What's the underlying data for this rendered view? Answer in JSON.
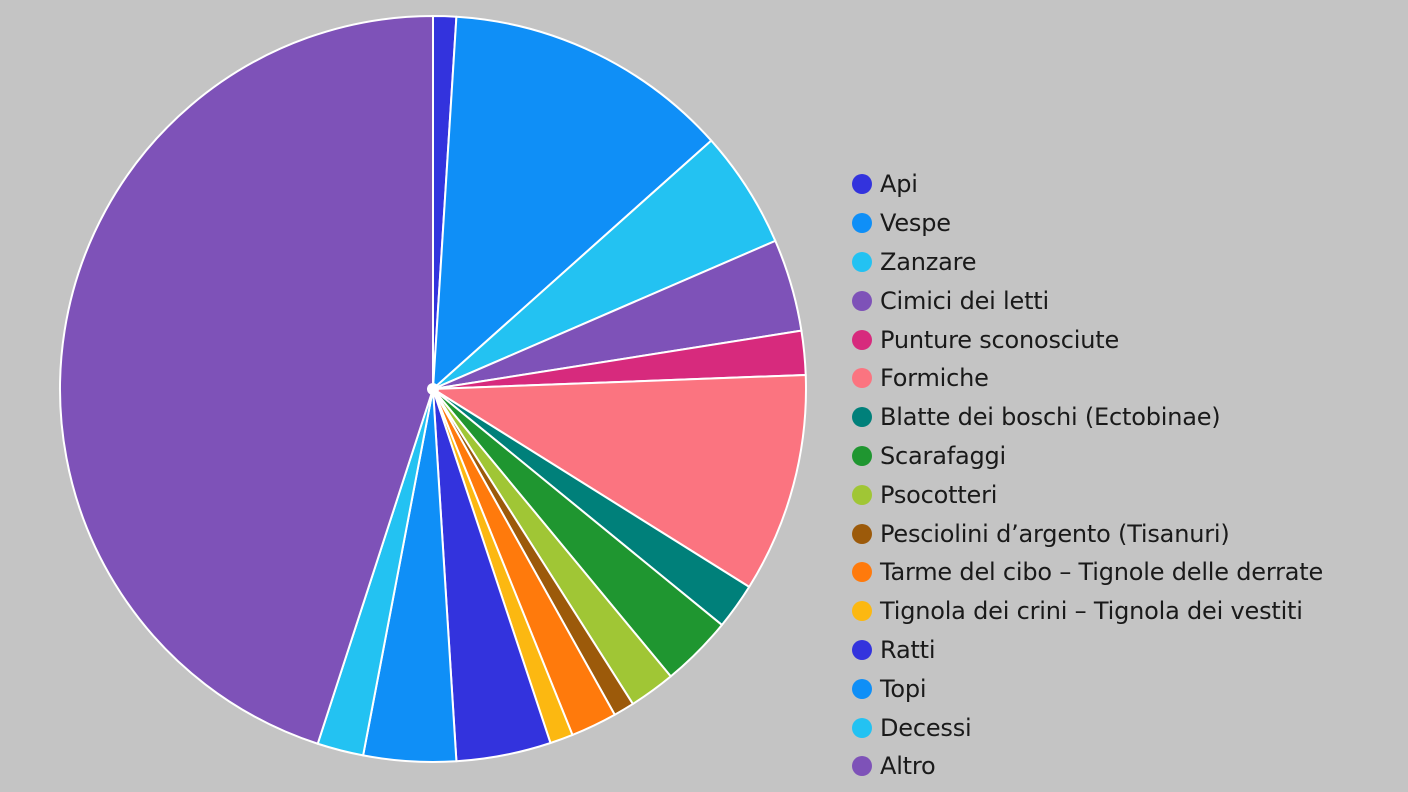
{
  "chart_data": {
    "type": "pie",
    "title": "",
    "legend_position": "right",
    "start_angle_deg": 0,
    "direction": "clockwise",
    "slices": [
      {
        "label": "Api",
        "value": 1.0,
        "color": "#3333dd"
      },
      {
        "label": "Vespe",
        "value": 12.4,
        "color": "#0f8ff7"
      },
      {
        "label": "Zanzare",
        "value": 5.1,
        "color": "#23c2f2"
      },
      {
        "label": "Cimici dei letti",
        "value": 4.0,
        "color": "#7e52b8"
      },
      {
        "label": "Punture sconosciute",
        "value": 1.9,
        "color": "#d72a7d"
      },
      {
        "label": "Formiche",
        "value": 9.5,
        "color": "#fb7480"
      },
      {
        "label": "Blatte dei boschi (Ectobinae)",
        "value": 2.0,
        "color": "#00807a"
      },
      {
        "label": "Scarafaggi",
        "value": 3.1,
        "color": "#1f9630"
      },
      {
        "label": "Psocotteri",
        "value": 2.0,
        "color": "#a0c635"
      },
      {
        "label": "Pesciolini d’argento (Tisanuri)",
        "value": 0.9,
        "color": "#9c5a0a"
      },
      {
        "label": "Tarme del cibo – Tignole delle derrate",
        "value": 2.0,
        "color": "#ff7a0c"
      },
      {
        "label": "Tignola dei crini – Tignola dei vestiti",
        "value": 1.0,
        "color": "#fcb811"
      },
      {
        "label": "Ratti",
        "value": 4.1,
        "color": "#3333dd"
      },
      {
        "label": "Topi",
        "value": 4.0,
        "color": "#0f8ff7"
      },
      {
        "label": "Decessi",
        "value": 2.0,
        "color": "#23c2f2"
      },
      {
        "label": "Altro",
        "value": 45.0,
        "color": "#7e52b8"
      }
    ]
  }
}
